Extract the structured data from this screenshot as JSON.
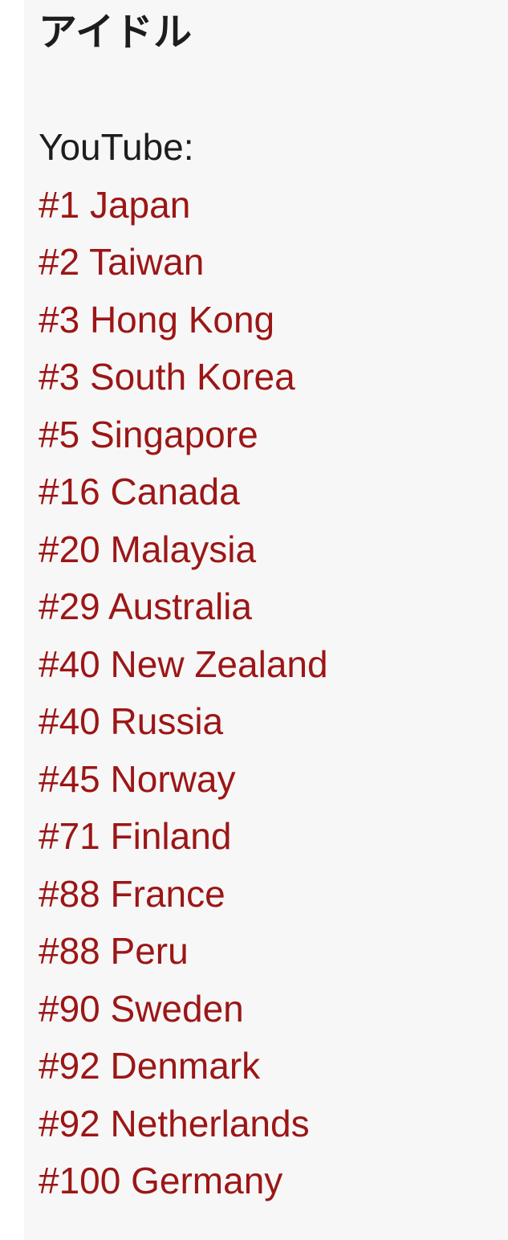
{
  "title": "アイドル",
  "platform_label": "YouTube:",
  "colors": {
    "link_red": "#9c1616",
    "text_black": "#1d1d1d",
    "panel_bg": "#f7f7f7",
    "gutter_bg": "#ffffff"
  },
  "rankings": [
    {
      "rank": "#1",
      "country": "Japan",
      "label": "#1 Japan"
    },
    {
      "rank": "#2",
      "country": "Taiwan",
      "label": "#2 Taiwan"
    },
    {
      "rank": "#3",
      "country": "Hong Kong",
      "label": "#3 Hong Kong"
    },
    {
      "rank": "#3",
      "country": "South Korea",
      "label": "#3 South Korea"
    },
    {
      "rank": "#5",
      "country": "Singapore",
      "label": "#5 Singapore"
    },
    {
      "rank": "#16",
      "country": "Canada",
      "label": "#16 Canada"
    },
    {
      "rank": "#20",
      "country": "Malaysia",
      "label": "#20 Malaysia"
    },
    {
      "rank": "#29",
      "country": "Australia",
      "label": "#29 Australia"
    },
    {
      "rank": "#40",
      "country": "New Zealand",
      "label": "#40 New Zealand"
    },
    {
      "rank": "#40",
      "country": "Russia",
      "label": "#40 Russia"
    },
    {
      "rank": "#45",
      "country": "Norway",
      "label": "#45 Norway"
    },
    {
      "rank": "#71",
      "country": "Finland",
      "label": "#71 Finland"
    },
    {
      "rank": "#88",
      "country": "France",
      "label": "#88 France"
    },
    {
      "rank": "#88",
      "country": "Peru",
      "label": "#88 Peru"
    },
    {
      "rank": "#90",
      "country": "Sweden",
      "label": "#90 Sweden"
    },
    {
      "rank": "#92",
      "country": "Denmark",
      "label": "#92 Denmark"
    },
    {
      "rank": "#92",
      "country": "Netherlands",
      "label": "#92 Netherlands"
    },
    {
      "rank": "#100",
      "country": "Germany",
      "label": "#100 Germany"
    }
  ]
}
